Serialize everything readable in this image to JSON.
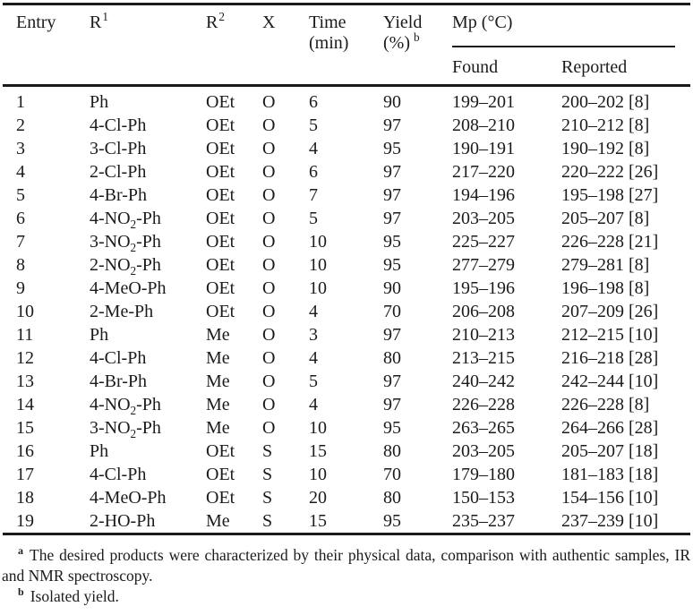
{
  "colors": {
    "text": "#1b1b1b",
    "rule": "#1a1a1a",
    "background": "#ffffff"
  },
  "table": {
    "header": {
      "entry": "Entry",
      "r1_base": "R",
      "r1_sup": "1",
      "r2_base": "R",
      "r2_sup": "2",
      "x": "X",
      "time_line1": "Time",
      "time_line2": "(min)",
      "yield_line1": "Yield",
      "yield_line2": "(%)",
      "yield_sup": "b",
      "mp": "Mp (°C)",
      "found": "Found",
      "reported": "Reported"
    },
    "row_keys": [
      "entry",
      "r1",
      "r2",
      "x",
      "time",
      "yield",
      "found",
      "reported"
    ],
    "rows": [
      {
        "entry": "1",
        "r1": "Ph",
        "r2": "OEt",
        "x": "O",
        "time": "6",
        "yield": "90",
        "found": "199–201",
        "reported": "200–202 [8]"
      },
      {
        "entry": "2",
        "r1": "4-Cl-Ph",
        "r2": "OEt",
        "x": "O",
        "time": "5",
        "yield": "97",
        "found": "208–210",
        "reported": "210–212 [8]"
      },
      {
        "entry": "3",
        "r1": "3-Cl-Ph",
        "r2": "OEt",
        "x": "O",
        "time": "4",
        "yield": "95",
        "found": "190–191",
        "reported": "190–192 [8]"
      },
      {
        "entry": "4",
        "r1": "2-Cl-Ph",
        "r2": "OEt",
        "x": "O",
        "time": "6",
        "yield": "97",
        "found": "217–220",
        "reported": "220–222 [26]"
      },
      {
        "entry": "5",
        "r1": "4-Br-Ph",
        "r2": "OEt",
        "x": "O",
        "time": "7",
        "yield": "97",
        "found": "194–196",
        "reported": "195–198 [27]"
      },
      {
        "entry": "6",
        "r1": "4-NO₂-Ph",
        "r2": "OEt",
        "x": "O",
        "time": "5",
        "yield": "97",
        "found": "203–205",
        "reported": "205–207 [8]"
      },
      {
        "entry": "7",
        "r1": "3-NO₂-Ph",
        "r2": "OEt",
        "x": "O",
        "time": "10",
        "yield": "95",
        "found": "225–227",
        "reported": "226–228 [21]"
      },
      {
        "entry": "8",
        "r1": "2-NO₂-Ph",
        "r2": "OEt",
        "x": "O",
        "time": "10",
        "yield": "95",
        "found": "277–279",
        "reported": "279–281 [8]"
      },
      {
        "entry": "9",
        "r1": "4-MeO-Ph",
        "r2": "OEt",
        "x": "O",
        "time": "10",
        "yield": "90",
        "found": "195–196",
        "reported": "196–198 [8]"
      },
      {
        "entry": "10",
        "r1": "2-Me-Ph",
        "r2": "OEt",
        "x": "O",
        "time": "4",
        "yield": "70",
        "found": "206–208",
        "reported": "207–209 [26]"
      },
      {
        "entry": "11",
        "r1": "Ph",
        "r2": "Me",
        "x": "O",
        "time": "3",
        "yield": "97",
        "found": "210–213",
        "reported": "212–215 [10]"
      },
      {
        "entry": "12",
        "r1": "4-Cl-Ph",
        "r2": "Me",
        "x": "O",
        "time": "4",
        "yield": "80",
        "found": "213–215",
        "reported": "216–218 [28]"
      },
      {
        "entry": "13",
        "r1": "4-Br-Ph",
        "r2": "Me",
        "x": "O",
        "time": "5",
        "yield": "97",
        "found": "240–242",
        "reported": "242–244 [10]"
      },
      {
        "entry": "14",
        "r1": "4-NO₂-Ph",
        "r2": "Me",
        "x": "O",
        "time": "4",
        "yield": "97",
        "found": "226–228",
        "reported": "226–228 [8]"
      },
      {
        "entry": "15",
        "r1": "3-NO₂-Ph",
        "r2": "Me",
        "x": "O",
        "time": "10",
        "yield": "95",
        "found": "263–265",
        "reported": "264–266 [28]"
      },
      {
        "entry": "16",
        "r1": "Ph",
        "r2": "OEt",
        "x": "S",
        "time": "15",
        "yield": "80",
        "found": "203–205",
        "reported": "205–207 [18]"
      },
      {
        "entry": "17",
        "r1": "4-Cl-Ph",
        "r2": "OEt",
        "x": "S",
        "time": "10",
        "yield": "70",
        "found": "179–180",
        "reported": "181–183 [18]"
      },
      {
        "entry": "18",
        "r1": "4-MeO-Ph",
        "r2": "OEt",
        "x": "S",
        "time": "20",
        "yield": "80",
        "found": "150–153",
        "reported": "154–156 [10]"
      },
      {
        "entry": "19",
        "r1": "2-HO-Ph",
        "r2": "Me",
        "x": "S",
        "time": "15",
        "yield": "95",
        "found": "235–237",
        "reported": "237–239 [10]"
      }
    ]
  },
  "footnotes": [
    {
      "marker": "a",
      "text": "The desired products were characterized by their physical data, comparison with authentic samples, IR and NMR spectroscopy."
    },
    {
      "marker": "b",
      "text": "Isolated yield."
    }
  ]
}
